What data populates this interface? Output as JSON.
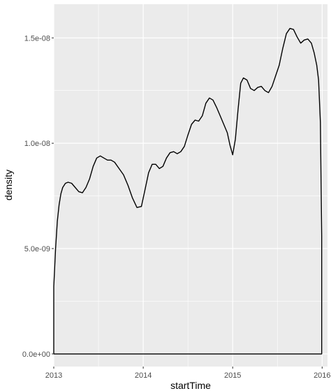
{
  "chart_data": {
    "type": "area",
    "title": "",
    "xlabel": "startTime",
    "ylabel": "density",
    "xlim": [
      2013,
      2016.06
    ],
    "ylim": [
      -6e-10,
      1.66e-08
    ],
    "grid": true,
    "x_ticks": [
      {
        "value": 2013,
        "label": "2013"
      },
      {
        "value": 2014,
        "label": "2014"
      },
      {
        "value": 2015,
        "label": "2015"
      },
      {
        "value": 2016,
        "label": "2016"
      }
    ],
    "y_ticks": [
      {
        "value": 0,
        "label": "0.0e+00"
      },
      {
        "value": 5e-09,
        "label": "5.0e-09"
      },
      {
        "value": 1e-08,
        "label": "1.0e-08"
      },
      {
        "value": 1.5e-08,
        "label": "1.5e-08"
      }
    ],
    "colors": {
      "panel": "#ebebeb",
      "grid_major": "#ffffff",
      "line": "#000000",
      "tick_label": "#4d4d4d"
    },
    "series": [
      {
        "x": [
          2013.0,
          2013.02,
          2013.04,
          2013.06,
          2013.08,
          2013.1,
          2013.13,
          2013.16,
          2013.2,
          2013.24,
          2013.28,
          2013.32,
          2013.36,
          2013.4,
          2013.44,
          2013.48,
          2013.52,
          2013.56,
          2013.6,
          2013.64,
          2013.68,
          2013.73,
          2013.78,
          2013.83,
          2013.88,
          2013.93,
          2013.98,
          2014.02,
          2014.06,
          2014.1,
          2014.14,
          2014.18,
          2014.22,
          2014.26,
          2014.3,
          2014.34,
          2014.38,
          2014.42,
          2014.46,
          2014.5,
          2014.54,
          2014.58,
          2014.62,
          2014.66,
          2014.7,
          2014.74,
          2014.78,
          2014.82,
          2014.86,
          2014.9,
          2014.94,
          2014.97,
          2015.0,
          2015.03,
          2015.06,
          2015.09,
          2015.12,
          2015.16,
          2015.2,
          2015.24,
          2015.28,
          2015.32,
          2015.36,
          2015.4,
          2015.44,
          2015.48,
          2015.52,
          2015.56,
          2015.6,
          2015.64,
          2015.68,
          2015.72,
          2015.76,
          2015.8,
          2015.84,
          2015.88,
          2015.91,
          2015.94,
          2015.96,
          2015.98,
          2015.995
        ],
        "y": [
          3.2e-09,
          5e-09,
          6.3e-09,
          7.1e-09,
          7.6e-09,
          7.9e-09,
          8.1e-09,
          8.15e-09,
          8.1e-09,
          7.9e-09,
          7.7e-09,
          7.65e-09,
          7.9e-09,
          8.3e-09,
          8.9e-09,
          9.3e-09,
          9.4e-09,
          9.3e-09,
          9.2e-09,
          9.2e-09,
          9.1e-09,
          8.8e-09,
          8.5e-09,
          8e-09,
          7.4e-09,
          6.95e-09,
          7e-09,
          7.8e-09,
          8.6e-09,
          9e-09,
          9e-09,
          8.8e-09,
          8.9e-09,
          9.3e-09,
          9.55e-09,
          9.6e-09,
          9.5e-09,
          9.6e-09,
          9.85e-09,
          1.04e-08,
          1.09e-08,
          1.11e-08,
          1.105e-08,
          1.13e-08,
          1.19e-08,
          1.215e-08,
          1.205e-08,
          1.17e-08,
          1.13e-08,
          1.09e-08,
          1.05e-08,
          9.9e-09,
          9.45e-09,
          1.02e-08,
          1.16e-08,
          1.285e-08,
          1.31e-08,
          1.3e-08,
          1.26e-08,
          1.25e-08,
          1.265e-08,
          1.27e-08,
          1.25e-08,
          1.24e-08,
          1.27e-08,
          1.32e-08,
          1.37e-08,
          1.45e-08,
          1.52e-08,
          1.545e-08,
          1.54e-08,
          1.505e-08,
          1.475e-08,
          1.49e-08,
          1.495e-08,
          1.475e-08,
          1.43e-08,
          1.37e-08,
          1.3e-08,
          1.1e-08,
          5.6e-09
        ]
      }
    ]
  }
}
